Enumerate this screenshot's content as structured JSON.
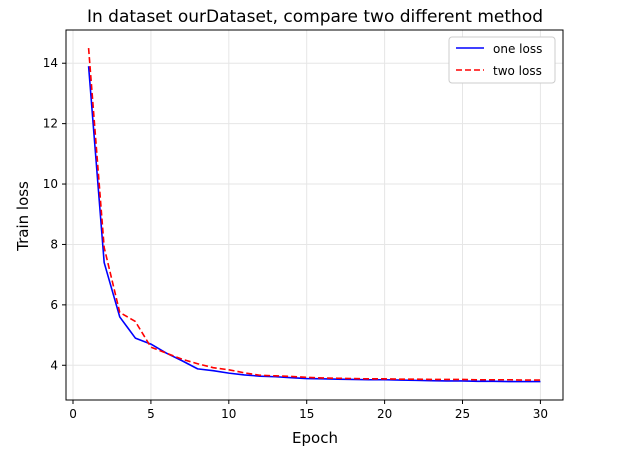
{
  "chart_data": {
    "type": "line",
    "title": "In dataset ourDataset, compare two different method",
    "xlabel": "Epoch",
    "ylabel": "Train loss",
    "xlim": [
      -0.45,
      31.45
    ],
    "ylim": [
      2.85,
      15.1
    ],
    "xticks": [
      0,
      5,
      10,
      15,
      20,
      25,
      30
    ],
    "yticks": [
      4,
      6,
      8,
      10,
      12,
      14
    ],
    "grid": true,
    "legend_position": "top-right",
    "x": [
      1,
      2,
      3,
      4,
      5,
      6,
      7,
      8,
      9,
      10,
      11,
      12,
      13,
      14,
      15,
      16,
      17,
      18,
      19,
      20,
      21,
      22,
      23,
      24,
      25,
      26,
      27,
      28,
      29,
      30
    ],
    "series": [
      {
        "name": "one loss",
        "color": "#0000ff",
        "style": "solid",
        "values": [
          13.9,
          7.4,
          5.6,
          4.9,
          4.7,
          4.4,
          4.15,
          3.88,
          3.82,
          3.74,
          3.68,
          3.64,
          3.62,
          3.59,
          3.56,
          3.55,
          3.54,
          3.53,
          3.52,
          3.52,
          3.51,
          3.5,
          3.49,
          3.48,
          3.48,
          3.47,
          3.47,
          3.46,
          3.46,
          3.46
        ]
      },
      {
        "name": "two loss",
        "color": "#ff0000",
        "style": "dashed",
        "values": [
          14.5,
          7.9,
          5.75,
          5.45,
          4.6,
          4.4,
          4.2,
          4.05,
          3.92,
          3.85,
          3.75,
          3.67,
          3.65,
          3.63,
          3.6,
          3.58,
          3.57,
          3.56,
          3.55,
          3.55,
          3.54,
          3.54,
          3.53,
          3.53,
          3.53,
          3.52,
          3.52,
          3.52,
          3.51,
          3.51
        ]
      }
    ]
  }
}
